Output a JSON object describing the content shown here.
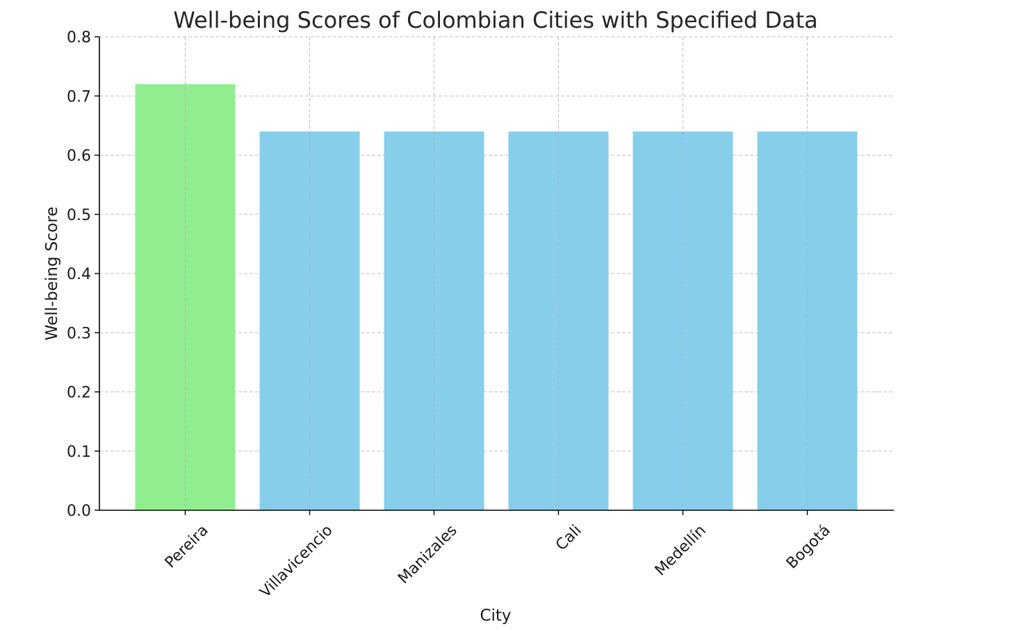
{
  "chart_data": {
    "type": "bar",
    "title": "Well-being Scores of Colombian Cities with Specified Data",
    "xlabel": "City",
    "ylabel": "Well-being Score",
    "categories": [
      "Pereira",
      "Villavicencio",
      "Manizales",
      "Cali",
      "Medellín",
      "Bogotá"
    ],
    "values": [
      0.72,
      0.64,
      0.64,
      0.64,
      0.64,
      0.64
    ],
    "bar_colors": [
      "#90ee90",
      "#87ceeb",
      "#87ceeb",
      "#87ceeb",
      "#87ceeb",
      "#87ceeb"
    ],
    "ylim": [
      0,
      0.8
    ],
    "yticks": [
      "0.0",
      "0.1",
      "0.2",
      "0.3",
      "0.4",
      "0.5",
      "0.6",
      "0.7",
      "0.8"
    ],
    "grid": true,
    "xtick_rotation_deg": 45
  }
}
